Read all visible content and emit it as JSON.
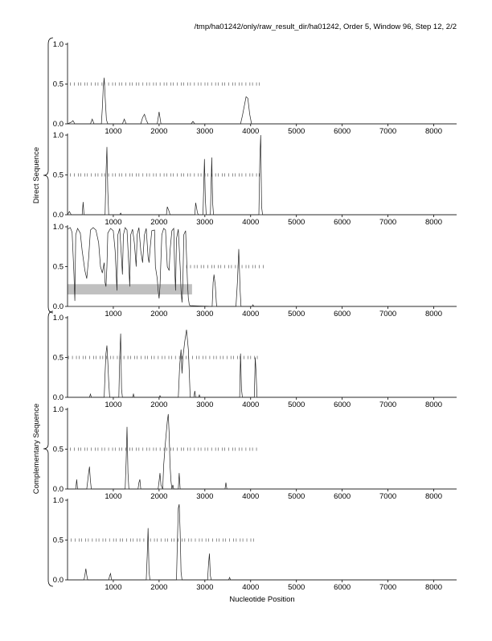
{
  "header": "/tmp/ha01242/only/raw_result_dir/ha01242, Order 5, Window 96, Step 12, 2/2",
  "xlabel": "Nucleotide Position",
  "groups": [
    {
      "label": "Direct Sequence",
      "panels": [
        0,
        1,
        2
      ]
    },
    {
      "label": "Complementary Sequence",
      "panels": [
        3,
        4,
        5
      ]
    }
  ],
  "colors": {
    "trace": "#222222",
    "ticks": "#444444",
    "highlight": "#c0c0c0",
    "axis": "#000000"
  },
  "chart_data": {
    "type": "line",
    "xlim": [
      0,
      8500
    ],
    "ylim": [
      0,
      1
    ],
    "x_ticks": [
      1000,
      2000,
      3000,
      4000,
      5000,
      6000,
      7000,
      8000
    ],
    "y_ticks": [
      "0.0",
      "0.5",
      "1.0"
    ],
    "panels": [
      {
        "name": "direct-frame-1",
        "points": [
          [
            0,
            0
          ],
          [
            80,
            0.02
          ],
          [
            120,
            0.04
          ],
          [
            160,
            0
          ],
          [
            500,
            0
          ],
          [
            540,
            0.06
          ],
          [
            580,
            0
          ],
          [
            740,
            0
          ],
          [
            760,
            0.2
          ],
          [
            780,
            0.45
          ],
          [
            800,
            0.58
          ],
          [
            820,
            0.35
          ],
          [
            850,
            0.05
          ],
          [
            880,
            0
          ],
          [
            1200,
            0
          ],
          [
            1240,
            0.06
          ],
          [
            1280,
            0
          ],
          [
            1600,
            0
          ],
          [
            1640,
            0.08
          ],
          [
            1680,
            0.12
          ],
          [
            1720,
            0.05
          ],
          [
            1760,
            0
          ],
          [
            1960,
            0
          ],
          [
            2000,
            0.15
          ],
          [
            2040,
            0
          ],
          [
            2700,
            0
          ],
          [
            2740,
            0.03
          ],
          [
            2780,
            0
          ],
          [
            3780,
            0
          ],
          [
            3820,
            0.1
          ],
          [
            3860,
            0.22
          ],
          [
            3900,
            0.34
          ],
          [
            3940,
            0.32
          ],
          [
            3980,
            0.12
          ],
          [
            4020,
            0
          ],
          [
            4300,
            0
          ],
          [
            8500,
            0
          ]
        ],
        "marks": {
          "y": 0.5,
          "from": 60,
          "to": 4250,
          "step": 75
        }
      },
      {
        "name": "direct-frame-2",
        "points": [
          [
            0,
            0
          ],
          [
            40,
            0.04
          ],
          [
            80,
            0
          ],
          [
            320,
            0
          ],
          [
            340,
            0.16
          ],
          [
            360,
            0
          ],
          [
            820,
            0
          ],
          [
            840,
            0.5
          ],
          [
            860,
            0.85
          ],
          [
            880,
            0.3
          ],
          [
            900,
            0
          ],
          [
            1140,
            0
          ],
          [
            1160,
            0.02
          ],
          [
            1180,
            0
          ],
          [
            2160,
            0
          ],
          [
            2180,
            0.1
          ],
          [
            2220,
            0.04
          ],
          [
            2240,
            0
          ],
          [
            2780,
            0
          ],
          [
            2800,
            0.15
          ],
          [
            2840,
            0.02
          ],
          [
            2860,
            0
          ],
          [
            2960,
            0
          ],
          [
            2990,
            0.7
          ],
          [
            3010,
            0.2
          ],
          [
            3030,
            0
          ],
          [
            3120,
            0
          ],
          [
            3150,
            0.72
          ],
          [
            3170,
            0.15
          ],
          [
            3190,
            0
          ],
          [
            4180,
            0
          ],
          [
            4200,
            0.7
          ],
          [
            4220,
            1.0
          ],
          [
            4240,
            0.1
          ],
          [
            4260,
            0
          ],
          [
            8500,
            0
          ]
        ],
        "marks": {
          "y": 0.5,
          "from": 60,
          "to": 4250,
          "step": 75
        }
      },
      {
        "name": "direct-frame-3",
        "points": [
          [
            0,
            0.97
          ],
          [
            60,
            0.99
          ],
          [
            100,
            0.93
          ],
          [
            140,
            0.4
          ],
          [
            160,
            0.07
          ],
          [
            180,
            0.9
          ],
          [
            220,
            0.98
          ],
          [
            280,
            0.92
          ],
          [
            320,
            0.7
          ],
          [
            380,
            0.45
          ],
          [
            420,
            0.35
          ],
          [
            460,
            0.6
          ],
          [
            500,
            0.96
          ],
          [
            560,
            0.99
          ],
          [
            620,
            0.96
          ],
          [
            680,
            0.8
          ],
          [
            720,
            0.5
          ],
          [
            760,
            0.42
          ],
          [
            800,
            0.55
          ],
          [
            820,
            0.3
          ],
          [
            840,
            0.25
          ],
          [
            860,
            0.5
          ],
          [
            880,
            0.92
          ],
          [
            940,
            0.98
          ],
          [
            1000,
            0.95
          ],
          [
            1040,
            0.7
          ],
          [
            1080,
            0.2
          ],
          [
            1100,
            0.9
          ],
          [
            1140,
            0.98
          ],
          [
            1180,
            0.6
          ],
          [
            1200,
            0.4
          ],
          [
            1220,
            0.9
          ],
          [
            1260,
            0.99
          ],
          [
            1300,
            0.96
          ],
          [
            1340,
            0.5
          ],
          [
            1360,
            0.25
          ],
          [
            1380,
            0.9
          ],
          [
            1420,
            0.97
          ],
          [
            1460,
            0.8
          ],
          [
            1500,
            0.5
          ],
          [
            1520,
            0.9
          ],
          [
            1560,
            0.99
          ],
          [
            1600,
            0.7
          ],
          [
            1640,
            0.55
          ],
          [
            1680,
            0.9
          ],
          [
            1720,
            0.98
          ],
          [
            1760,
            0.62
          ],
          [
            1780,
            0.55
          ],
          [
            1800,
            0.7
          ],
          [
            1840,
            0.95
          ],
          [
            1900,
            0.96
          ],
          [
            1920,
            0.5
          ],
          [
            1960,
            0.35
          ],
          [
            1980,
            0.2
          ],
          [
            2000,
            0.1
          ],
          [
            2020,
            0.25
          ],
          [
            2060,
            0.9
          ],
          [
            2100,
            0.98
          ],
          [
            2140,
            0.96
          ],
          [
            2180,
            0.5
          ],
          [
            2220,
            0.45
          ],
          [
            2240,
            0.7
          ],
          [
            2280,
            0.95
          ],
          [
            2320,
            0.98
          ],
          [
            2340,
            0.5
          ],
          [
            2360,
            0.2
          ],
          [
            2380,
            0.85
          ],
          [
            2420,
            0.97
          ],
          [
            2460,
            0.5
          ],
          [
            2480,
            0.2
          ],
          [
            2500,
            0.05
          ],
          [
            2520,
            0.3
          ],
          [
            2540,
            0.9
          ],
          [
            2580,
            0.95
          ],
          [
            2620,
            0.3
          ],
          [
            2640,
            0.1
          ],
          [
            2660,
            0.02
          ],
          [
            2680,
            0.01
          ],
          [
            3160,
            0
          ],
          [
            3180,
            0.3
          ],
          [
            3200,
            0.4
          ],
          [
            3230,
            0.25
          ],
          [
            3250,
            0.05
          ],
          [
            3260,
            0
          ],
          [
            3680,
            0
          ],
          [
            3710,
            0.3
          ],
          [
            3740,
            0.72
          ],
          [
            3770,
            0.2
          ],
          [
            3790,
            0
          ],
          [
            4030,
            0
          ],
          [
            4050,
            0.02
          ],
          [
            4070,
            0
          ],
          [
            8500,
            0
          ]
        ],
        "marks": {
          "y": 0.5,
          "from": 2600,
          "to": 4250,
          "step": 75
        },
        "highlight": {
          "x": [
            0,
            2720
          ],
          "y": [
            0.15,
            0.28
          ]
        }
      },
      {
        "name": "complement-frame-1",
        "points": [
          [
            0,
            0
          ],
          [
            480,
            0
          ],
          [
            500,
            0.04
          ],
          [
            520,
            0
          ],
          [
            800,
            0
          ],
          [
            820,
            0.3
          ],
          [
            840,
            0.55
          ],
          [
            860,
            0.65
          ],
          [
            880,
            0.45
          ],
          [
            900,
            0.2
          ],
          [
            920,
            0
          ],
          [
            1120,
            0
          ],
          [
            1140,
            0.5
          ],
          [
            1160,
            0.8
          ],
          [
            1180,
            0.1
          ],
          [
            1200,
            0
          ],
          [
            1420,
            0
          ],
          [
            1440,
            0.04
          ],
          [
            1460,
            0
          ],
          [
            2000,
            0
          ],
          [
            2020,
            0.02
          ],
          [
            2040,
            0
          ],
          [
            2420,
            0
          ],
          [
            2450,
            0.4
          ],
          [
            2480,
            0.6
          ],
          [
            2500,
            0.3
          ],
          [
            2520,
            0.5
          ],
          [
            2560,
            0.7
          ],
          [
            2600,
            0.85
          ],
          [
            2640,
            0.6
          ],
          [
            2660,
            0.3
          ],
          [
            2680,
            0
          ],
          [
            2760,
            0
          ],
          [
            2780,
            0.08
          ],
          [
            2800,
            0
          ],
          [
            2860,
            0
          ],
          [
            2880,
            0.03
          ],
          [
            2900,
            0
          ],
          [
            3760,
            0
          ],
          [
            3780,
            0.55
          ],
          [
            3800,
            0.1
          ],
          [
            3820,
            0
          ],
          [
            4080,
            0
          ],
          [
            4100,
            0.5
          ],
          [
            4120,
            0.3
          ],
          [
            4140,
            0
          ],
          [
            8500,
            0
          ]
        ],
        "marks": {
          "y": 0.5,
          "from": 20,
          "to": 4200,
          "step": 75
        }
      },
      {
        "name": "complement-frame-2",
        "points": [
          [
            0,
            0
          ],
          [
            180,
            0
          ],
          [
            200,
            0.12
          ],
          [
            220,
            0
          ],
          [
            420,
            0
          ],
          [
            440,
            0.1
          ],
          [
            460,
            0.2
          ],
          [
            480,
            0.28
          ],
          [
            500,
            0.1
          ],
          [
            520,
            0
          ],
          [
            1260,
            0
          ],
          [
            1280,
            0.35
          ],
          [
            1300,
            0.78
          ],
          [
            1320,
            0.2
          ],
          [
            1340,
            0
          ],
          [
            1540,
            0
          ],
          [
            1560,
            0.08
          ],
          [
            1580,
            0.12
          ],
          [
            1600,
            0
          ],
          [
            1980,
            0
          ],
          [
            2000,
            0.1
          ],
          [
            2020,
            0.2
          ],
          [
            2040,
            0.05
          ],
          [
            2080,
            0
          ],
          [
            2100,
            0.3
          ],
          [
            2140,
            0.6
          ],
          [
            2180,
            0.85
          ],
          [
            2200,
            0.94
          ],
          [
            2220,
            0.7
          ],
          [
            2240,
            0.3
          ],
          [
            2260,
            0.1
          ],
          [
            2280,
            0
          ],
          [
            2300,
            0.05
          ],
          [
            2320,
            0
          ],
          [
            2420,
            0
          ],
          [
            2440,
            0.2
          ],
          [
            2460,
            0
          ],
          [
            3440,
            0
          ],
          [
            3460,
            0.08
          ],
          [
            3480,
            0
          ],
          [
            8500,
            0
          ]
        ],
        "marks": {
          "y": 0.5,
          "from": 60,
          "to": 4150,
          "step": 75
        }
      },
      {
        "name": "complement-frame-3",
        "points": [
          [
            0,
            0
          ],
          [
            360,
            0
          ],
          [
            380,
            0.06
          ],
          [
            400,
            0.14
          ],
          [
            420,
            0.06
          ],
          [
            440,
            0
          ],
          [
            900,
            0
          ],
          [
            920,
            0.05
          ],
          [
            940,
            0.08
          ],
          [
            960,
            0
          ],
          [
            1720,
            0
          ],
          [
            1740,
            0.3
          ],
          [
            1760,
            0.65
          ],
          [
            1780,
            0.1
          ],
          [
            1800,
            0
          ],
          [
            2380,
            0
          ],
          [
            2400,
            0.5
          ],
          [
            2420,
            0.9
          ],
          [
            2440,
            0.95
          ],
          [
            2460,
            0.6
          ],
          [
            2480,
            0.1
          ],
          [
            2500,
            0
          ],
          [
            3060,
            0
          ],
          [
            3080,
            0.2
          ],
          [
            3100,
            0.33
          ],
          [
            3120,
            0.05
          ],
          [
            3140,
            0
          ],
          [
            3520,
            0
          ],
          [
            3540,
            0.03
          ],
          [
            3560,
            0
          ],
          [
            8500,
            0
          ]
        ],
        "marks": {
          "y": 0.5,
          "from": 80,
          "to": 4120,
          "step": 75
        }
      }
    ]
  }
}
